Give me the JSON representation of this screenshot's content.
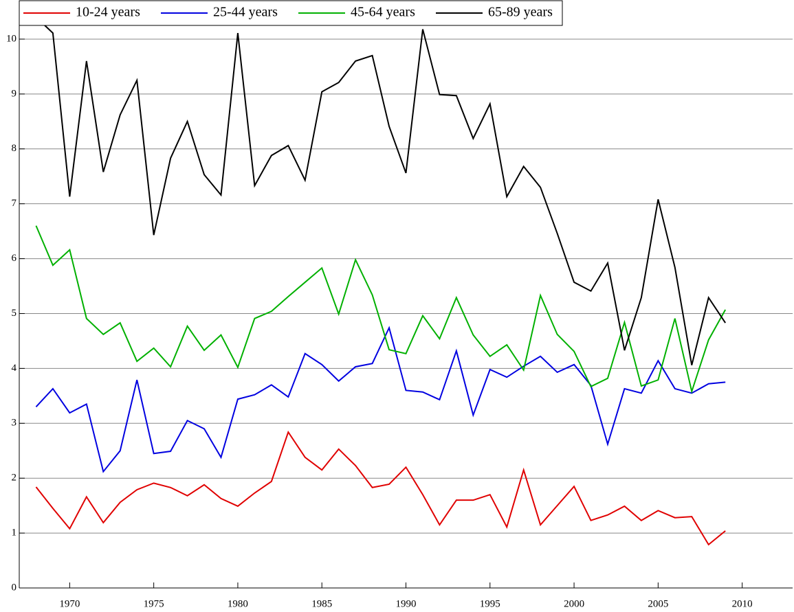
{
  "chart_data": {
    "type": "line",
    "x": [
      1968,
      1969,
      1970,
      1971,
      1972,
      1973,
      1974,
      1975,
      1976,
      1977,
      1978,
      1979,
      1980,
      1981,
      1982,
      1983,
      1984,
      1985,
      1986,
      1987,
      1988,
      1989,
      1990,
      1991,
      1992,
      1993,
      1994,
      1995,
      1996,
      1997,
      1998,
      1999,
      2000,
      2001,
      2002,
      2003,
      2004,
      2005,
      2006,
      2007,
      2008,
      2009
    ],
    "series": [
      {
        "name": "10-24 years",
        "color": "#e00000",
        "values": [
          1.84,
          1.45,
          1.08,
          1.66,
          1.19,
          1.56,
          1.79,
          1.91,
          1.83,
          1.68,
          1.88,
          1.63,
          1.49,
          1.73,
          1.94,
          2.84,
          2.38,
          2.15,
          2.53,
          2.23,
          1.83,
          1.89,
          2.2,
          1.7,
          1.15,
          1.6,
          1.6,
          1.7,
          1.11,
          2.15,
          1.15,
          1.5,
          1.85,
          1.23,
          1.33,
          1.49,
          1.23,
          1.41,
          1.28,
          1.3,
          0.79,
          1.04
        ]
      },
      {
        "name": "25-44 years",
        "color": "#0000e0",
        "values": [
          3.3,
          3.63,
          3.19,
          3.35,
          2.12,
          2.5,
          3.79,
          2.45,
          2.49,
          3.05,
          2.9,
          2.38,
          3.44,
          3.52,
          3.7,
          3.48,
          4.27,
          4.07,
          3.77,
          4.03,
          4.09,
          4.74,
          3.6,
          3.57,
          3.43,
          4.32,
          3.15,
          3.98,
          3.84,
          4.04,
          4.22,
          3.93,
          4.07,
          3.69,
          2.62,
          3.63,
          3.55,
          4.14,
          3.63,
          3.55,
          3.72,
          3.75
        ]
      },
      {
        "name": "45-64 years",
        "color": "#00b000",
        "values": [
          6.6,
          5.88,
          6.16,
          4.91,
          4.62,
          4.83,
          4.13,
          4.37,
          4.03,
          4.77,
          4.33,
          4.61,
          4.02,
          4.91,
          5.04,
          5.31,
          5.57,
          5.83,
          4.99,
          5.98,
          5.34,
          4.34,
          4.27,
          4.96,
          4.54,
          5.29,
          4.61,
          4.22,
          4.43,
          3.97,
          5.33,
          4.62,
          4.31,
          3.67,
          3.82,
          4.84,
          3.68,
          3.79,
          4.91,
          3.58,
          4.52,
          5.07
        ]
      },
      {
        "name": "65-89 years",
        "color": "#000000",
        "values": [
          10.4,
          10.11,
          7.13,
          9.6,
          7.58,
          8.62,
          9.25,
          6.43,
          7.83,
          8.5,
          7.53,
          7.16,
          10.11,
          7.33,
          7.88,
          8.06,
          7.43,
          9.04,
          9.21,
          9.6,
          9.7,
          8.41,
          7.56,
          10.18,
          8.99,
          8.97,
          8.19,
          8.82,
          7.13,
          7.68,
          7.3,
          6.46,
          5.57,
          5.41,
          5.92,
          4.33,
          5.29,
          7.08,
          5.84,
          4.06,
          5.29,
          4.83
        ]
      }
    ],
    "xlim": [
      1967,
      2013
    ],
    "xticks": [
      1970,
      1975,
      1980,
      1985,
      1990,
      1995,
      2000,
      2005,
      2010
    ],
    "ylim": [
      0,
      10.55
    ],
    "yticks": [
      0,
      1,
      2,
      3,
      4,
      5,
      6,
      7,
      8,
      9,
      10
    ],
    "grid": true,
    "legend": "upper left"
  }
}
